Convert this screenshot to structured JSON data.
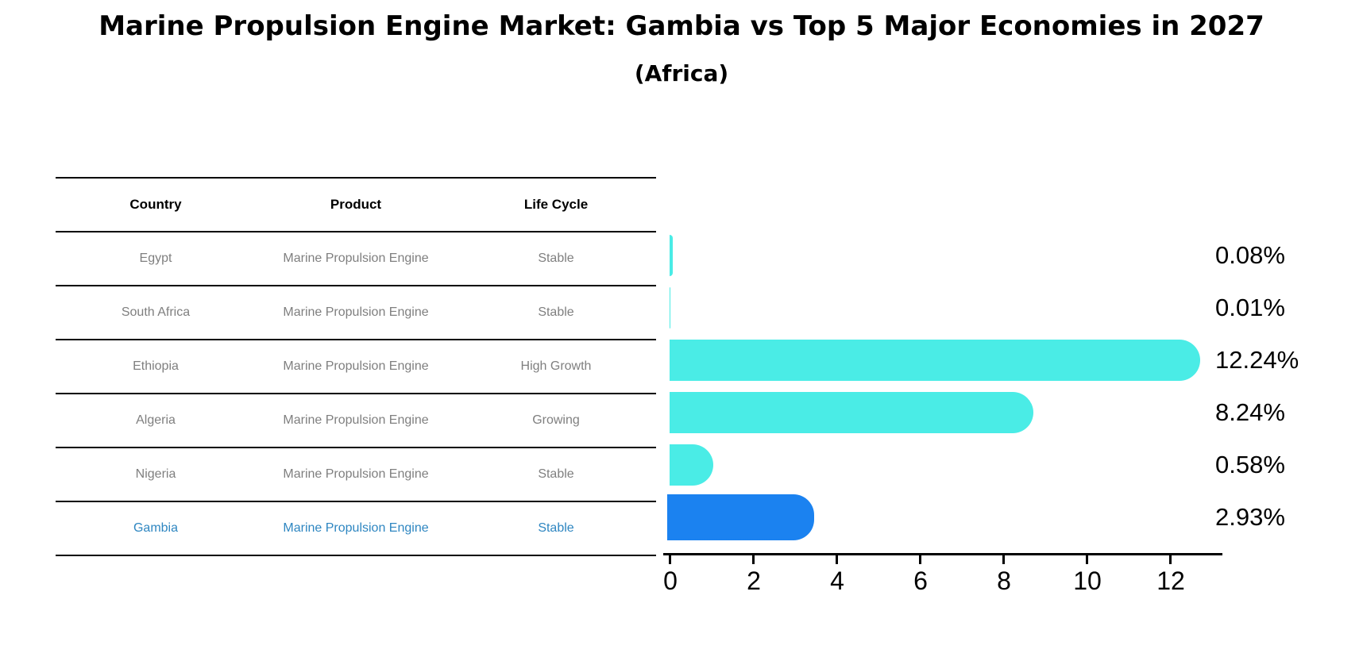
{
  "header": {
    "title": "Marine Propulsion Engine Market: Gambia vs Top 5 Major Economies in 2027",
    "subtitle": "(Africa)"
  },
  "table": {
    "columns": [
      "Country",
      "Product",
      "Life Cycle"
    ],
    "rows": [
      {
        "country": "Egypt",
        "product": "Marine Propulsion Engine",
        "life_cycle": "Stable",
        "highlight": false
      },
      {
        "country": "South Africa",
        "product": "Marine Propulsion Engine",
        "life_cycle": "Stable",
        "highlight": false
      },
      {
        "country": "Ethiopia",
        "product": "Marine Propulsion Engine",
        "life_cycle": "High Growth",
        "highlight": false
      },
      {
        "country": "Algeria",
        "product": "Marine Propulsion Engine",
        "life_cycle": "Growing",
        "highlight": false
      },
      {
        "country": "Nigeria",
        "product": "Marine Propulsion Engine",
        "life_cycle": "Stable",
        "highlight": false
      },
      {
        "country": "Gambia",
        "product": "Marine Propulsion Engine",
        "life_cycle": "Stable",
        "highlight": true
      }
    ]
  },
  "chart_data": {
    "type": "bar",
    "orientation": "horizontal",
    "title": "Marine Propulsion Engine Market: Gambia vs Top 5 Major Economies in 2027 (Africa)",
    "categories": [
      "Egypt",
      "South Africa",
      "Ethiopia",
      "Algeria",
      "Nigeria",
      "Gambia"
    ],
    "values": [
      0.08,
      0.01,
      12.24,
      8.24,
      0.58,
      2.93
    ],
    "value_labels": [
      "0.08%",
      "0.01%",
      "12.24%",
      "8.24%",
      "0.58%",
      "2.93%"
    ],
    "x_ticks": [
      0,
      2,
      4,
      6,
      8,
      10,
      12
    ],
    "xlim": [
      0,
      13
    ],
    "grid": false,
    "legend": false,
    "highlight_index": 5,
    "bar_color": "#4AECE6",
    "highlight_color": "#1B82F0"
  },
  "colors": {
    "bar": "#4AECE6",
    "highlight_bar": "#1B82F0",
    "highlight_text": "#2E86C1",
    "table_text": "#7f7f7f",
    "lines": "#000000"
  }
}
